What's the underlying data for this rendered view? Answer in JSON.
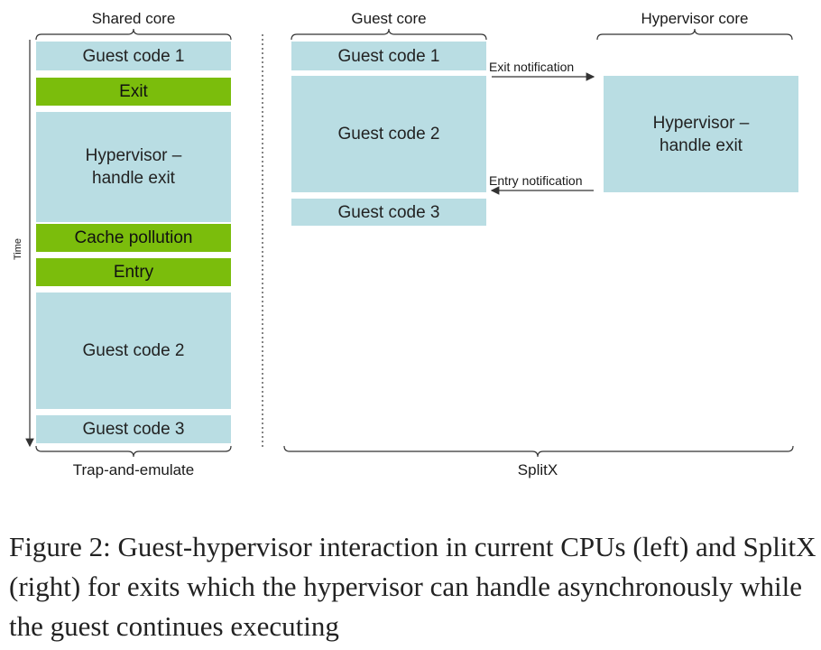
{
  "left": {
    "header": "Shared core",
    "axis_label": "Time",
    "footer": "Trap-and-emulate",
    "blocks": [
      {
        "label": "Guest code 1",
        "kind": "guest"
      },
      {
        "label": "Exit",
        "kind": "overhead"
      },
      {
        "label": "Hypervisor –\nhandle exit",
        "kind": "guest"
      },
      {
        "label": "Cache pollution",
        "kind": "overhead"
      },
      {
        "label": "Entry",
        "kind": "overhead"
      },
      {
        "label": "Guest code 2",
        "kind": "guest"
      },
      {
        "label": "Guest code 3",
        "kind": "guest"
      }
    ]
  },
  "right": {
    "guest_header": "Guest core",
    "hypervisor_header": "Hypervisor core",
    "footer": "SplitX",
    "guest_blocks": [
      {
        "label": "Guest code 1"
      },
      {
        "label": "Guest code 2"
      },
      {
        "label": "Guest code 3"
      }
    ],
    "hypervisor_block": {
      "label": "Hypervisor –\nhandle exit"
    },
    "exit_notification": "Exit notification",
    "entry_notification": "Entry notification"
  },
  "colors": {
    "guest_block": "#b9dde3",
    "overhead_block": "#7bbd0c",
    "line": "#333333"
  },
  "caption": "Figure 2: Guest-hypervisor interaction in current CPUs (left) and SplitX (right) for exits which the hypervisor can handle asynchronously while the guest continues executing"
}
